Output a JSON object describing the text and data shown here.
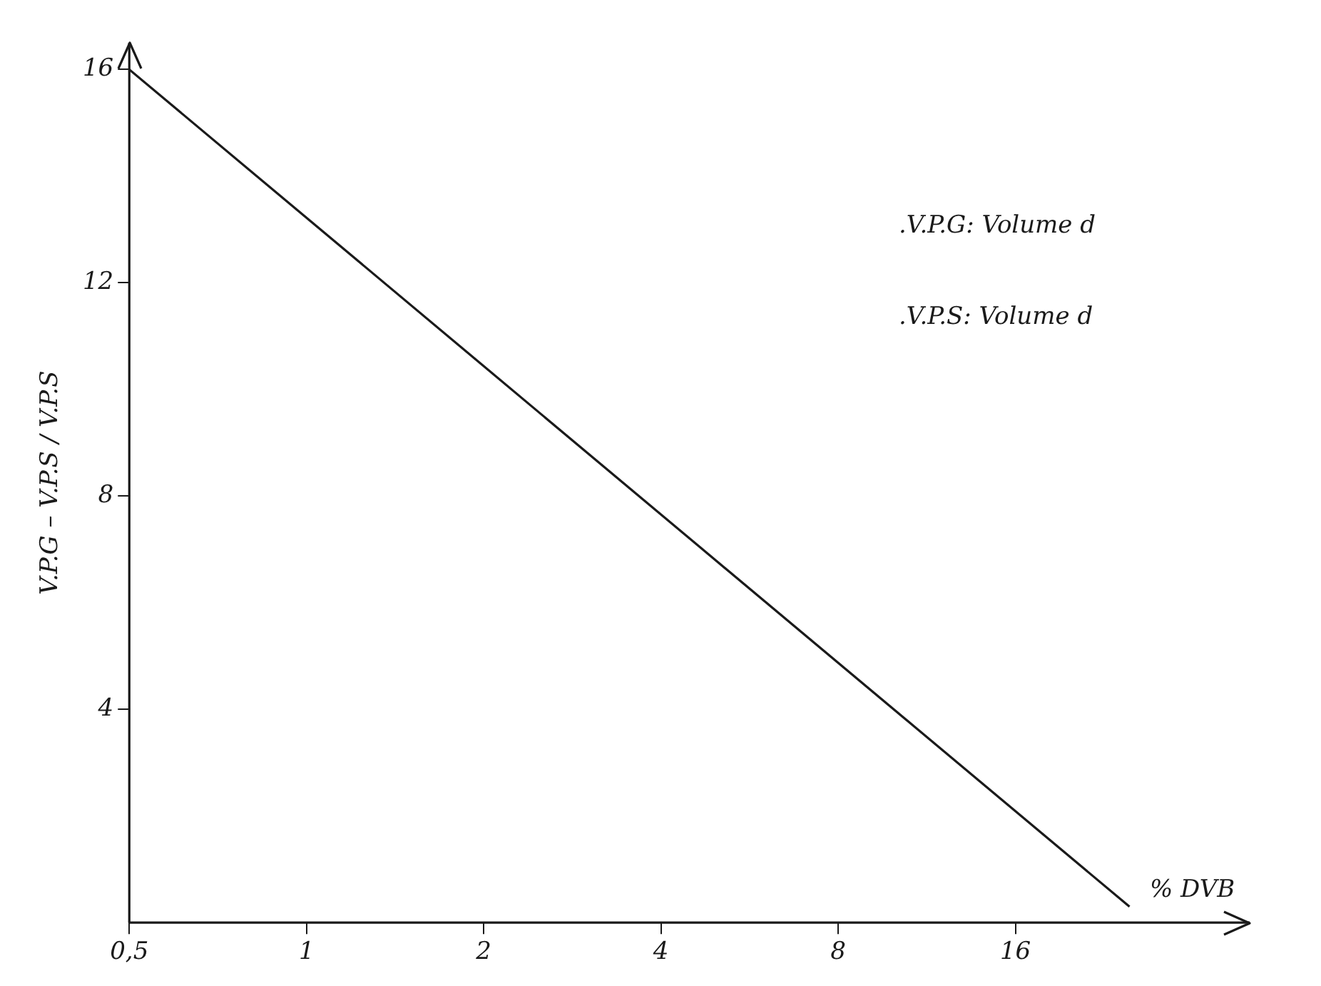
{
  "chart_data": {
    "type": "line",
    "xlabel": "% DVB",
    "ylabel": "V.P.G – V.P.S / V.P.S",
    "annotations": [
      ".V.P.G: Volume d",
      ".V.P.S: Volume d"
    ],
    "log": "x",
    "x": [
      0.5,
      25
    ],
    "values": [
      16,
      0.3
    ],
    "color": "#1a1a1a",
    "marker": "none",
    "line_style": "solid",
    "grid": false,
    "legend": false,
    "xlim": [
      0.5,
      40
    ],
    "xticks": [
      {
        "value": 0.5,
        "label": "0,5"
      },
      1,
      2,
      4,
      8,
      16
    ],
    "ylim": [
      0,
      16.5
    ],
    "yticks": [
      4,
      8,
      12,
      16
    ]
  }
}
